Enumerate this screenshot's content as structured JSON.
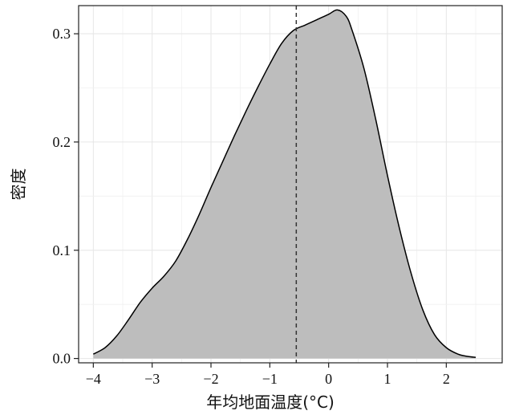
{
  "chart_data": {
    "type": "area",
    "xlabel": "年均地面温度(°C)",
    "ylabel": "密度",
    "xlim": [
      -4.25,
      2.95
    ],
    "ylim": [
      -0.004,
      0.326
    ],
    "x_ticks": [
      -4,
      -3,
      -2,
      -1,
      0,
      1,
      2
    ],
    "x_tick_labels": [
      "−4",
      "−3",
      "−2",
      "−1",
      "0",
      "1",
      "2"
    ],
    "y_ticks": [
      0.0,
      0.1,
      0.2,
      0.3
    ],
    "y_tick_labels": [
      "0.0",
      "0.1",
      "0.2",
      "0.3"
    ],
    "grid": true,
    "fill_color": "#bdbdbd",
    "line_color": "#000000",
    "vline": {
      "x": -0.55,
      "style": "dashed"
    },
    "series": [
      {
        "x": [
          -4.0,
          -3.8,
          -3.6,
          -3.4,
          -3.2,
          -3.0,
          -2.8,
          -2.6,
          -2.4,
          -2.2,
          -2.0,
          -1.8,
          -1.6,
          -1.4,
          -1.2,
          -1.0,
          -0.8,
          -0.6,
          -0.4,
          -0.2,
          0.0,
          0.15,
          0.3,
          0.4,
          0.6,
          0.8,
          1.0,
          1.2,
          1.4,
          1.6,
          1.8,
          2.0,
          2.2,
          2.35,
          2.5
        ],
        "y": [
          0.004,
          0.01,
          0.021,
          0.036,
          0.052,
          0.065,
          0.076,
          0.09,
          0.11,
          0.133,
          0.158,
          0.182,
          0.206,
          0.229,
          0.251,
          0.272,
          0.291,
          0.303,
          0.308,
          0.313,
          0.318,
          0.322,
          0.316,
          0.303,
          0.268,
          0.221,
          0.169,
          0.121,
          0.079,
          0.045,
          0.022,
          0.01,
          0.004,
          0.002,
          0.001
        ]
      }
    ]
  }
}
